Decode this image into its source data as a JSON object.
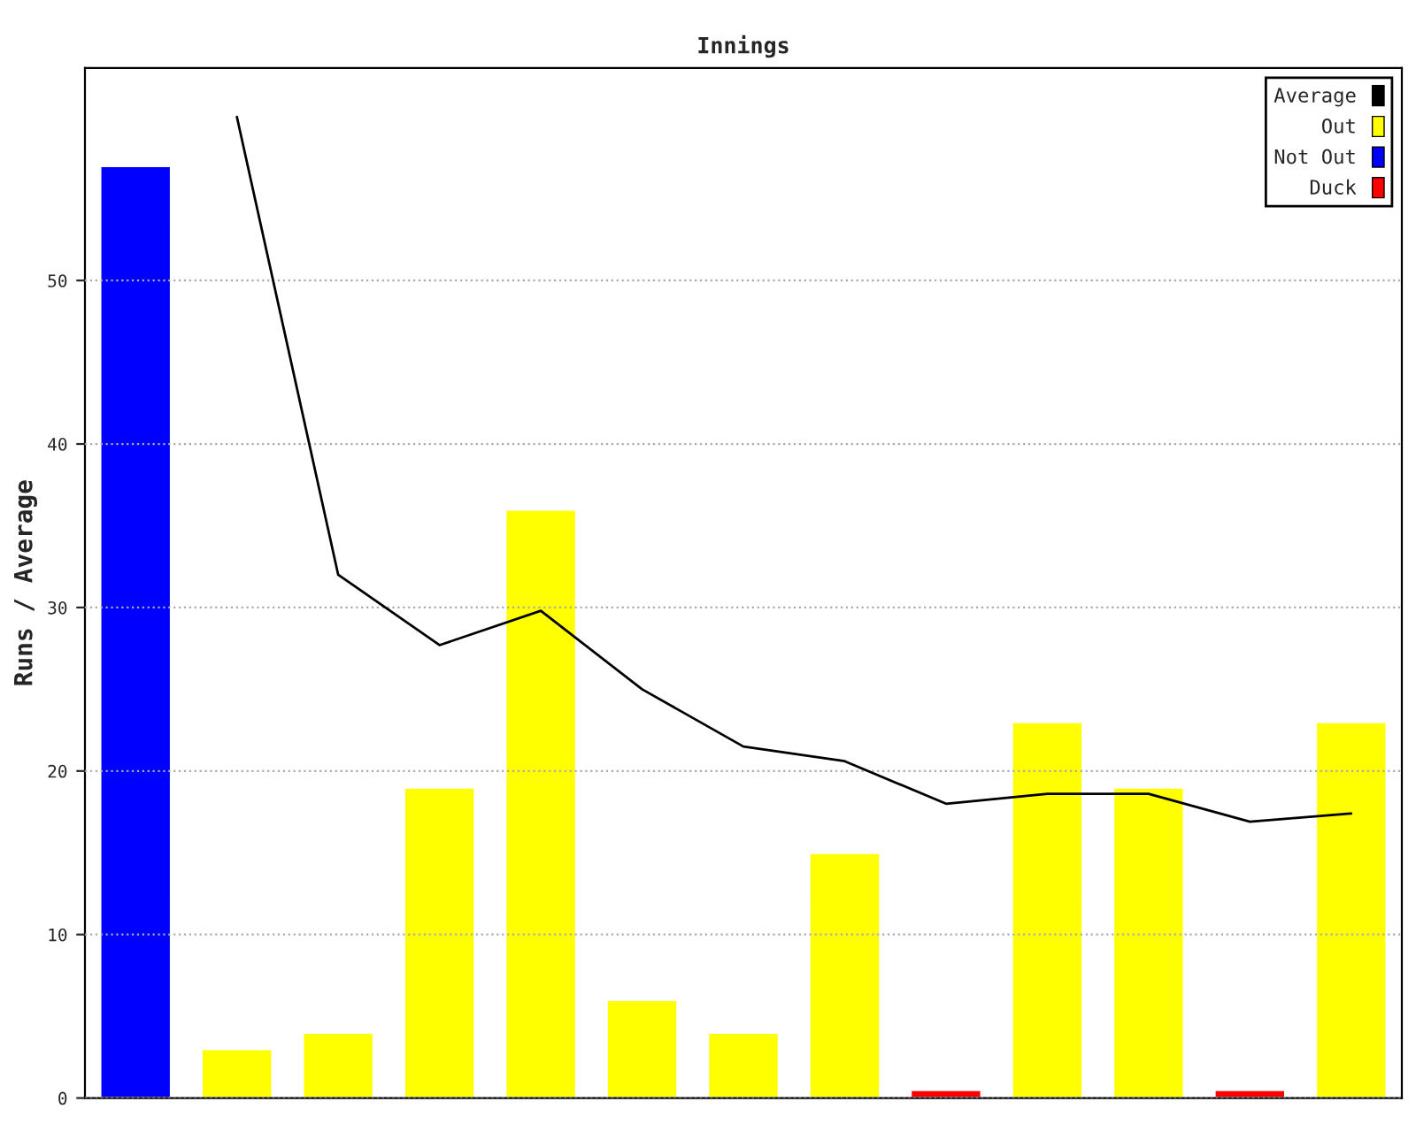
{
  "chart_data": {
    "type": "bar",
    "title": "Innings",
    "ylabel": "Runs / Average",
    "categories": [
      null,
      null,
      null,
      null,
      null,
      null,
      null,
      null,
      null,
      null,
      null,
      null,
      null
    ],
    "series": [
      {
        "name": "Average",
        "type": "line",
        "color": "#000000",
        "values": [
          null,
          60,
          32,
          27.7,
          29.8,
          25,
          21.5,
          20.6,
          18,
          18.6,
          18.6,
          16.9,
          17.4
        ]
      },
      {
        "name": "Out",
        "color": "#ffff00",
        "values": [
          null,
          3,
          4,
          19,
          36,
          6,
          4,
          15,
          null,
          23,
          19,
          null,
          23
        ]
      },
      {
        "name": "Not Out",
        "color": "#0000ff",
        "values": [
          57,
          null,
          null,
          null,
          null,
          null,
          null,
          null,
          null,
          null,
          null,
          null,
          null
        ]
      },
      {
        "name": "Duck",
        "color": "#ff0000",
        "values": [
          null,
          null,
          null,
          null,
          null,
          null,
          null,
          null,
          0.5,
          null,
          null,
          0.5,
          null
        ]
      }
    ],
    "ylim": [
      0,
      63
    ],
    "yticks": [
      0,
      10,
      20,
      30,
      40,
      50
    ],
    "grid": "y",
    "legend": "top right",
    "tick_labels": "y",
    "marker": "none",
    "line_style": "solid"
  }
}
